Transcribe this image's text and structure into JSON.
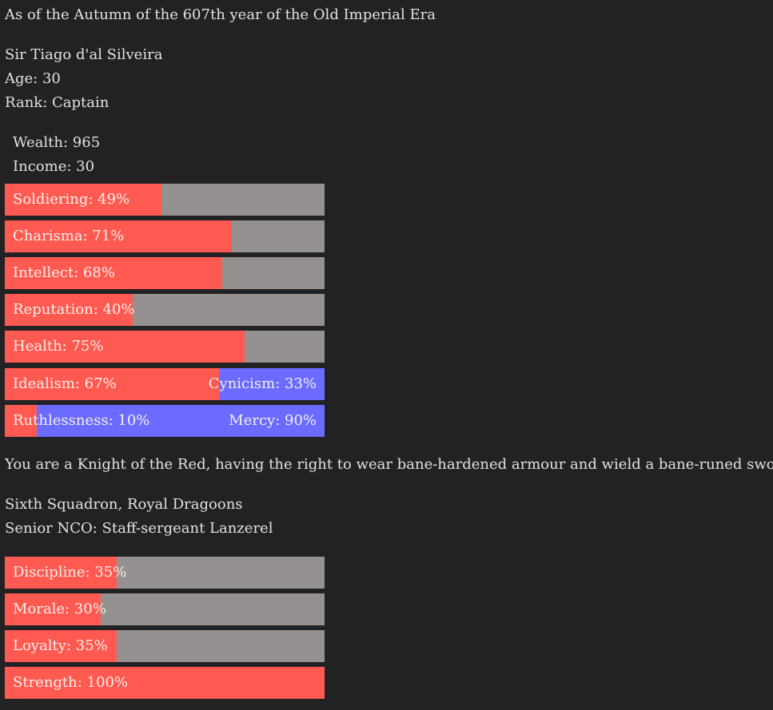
{
  "header": {
    "date_text": "As of the Autumn of the 607th year of the Old Imperial Era"
  },
  "character": {
    "name": "Sir Tiago d'al Silveira",
    "age": "Age: 30",
    "rank": "Rank: Captain",
    "wealth": "Wealth: 965",
    "income": "Income: 30"
  },
  "stats": [
    {
      "label": "Soldiering: 49%",
      "value": 49
    },
    {
      "label": "Charisma: 71%",
      "value": 71
    },
    {
      "label": "Intellect: 68%",
      "value": 68
    },
    {
      "label": "Reputation: 40%",
      "value": 40
    },
    {
      "label": "Health: 75%",
      "value": 75
    }
  ],
  "dual_stats": [
    {
      "left_label": "Idealism: 67%",
      "right_label": "Cynicism: 33%",
      "value": 67
    },
    {
      "left_label": "Ruthlessness: 10%",
      "right_label": "Mercy: 90%",
      "value": 10
    }
  ],
  "description": "You are a Knight of the Red, having the right to wear bane-hardened armour and wield a bane-runed sword.",
  "unit": {
    "name": "Sixth Squadron, Royal Dragoons",
    "nco": "Senior NCO: Staff-sergeant Lanzerel",
    "stats": [
      {
        "label": "Discipline: 35%",
        "value": 35
      },
      {
        "label": "Morale: 30%",
        "value": 30
      },
      {
        "label": "Loyalty: 35%",
        "value": 35
      },
      {
        "label": "Strength: 100%",
        "value": 100
      }
    ]
  },
  "colors": {
    "fill": "#ff5a52",
    "track": "#959190",
    "alt": "#6b6bff",
    "background": "#222123"
  }
}
